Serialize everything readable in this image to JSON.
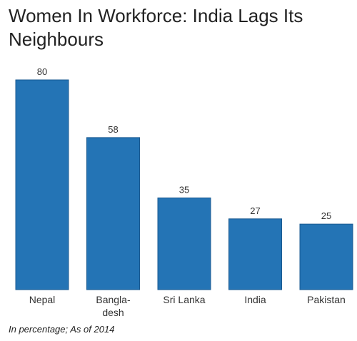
{
  "chart_data": {
    "type": "bar",
    "title": "Women In Workforce: India Lags Its Neighbours",
    "categories": [
      [
        "Nepal"
      ],
      [
        "Bangla-",
        "desh"
      ],
      [
        "Sri Lanka"
      ],
      [
        "India"
      ],
      [
        "Pakistan"
      ]
    ],
    "values": [
      80,
      58,
      35,
      27,
      25
    ],
    "ylim": [
      0,
      80
    ],
    "grid": false,
    "note": "In percentage; As of 2014",
    "bar_color": "#2474b5",
    "bar_edge_color": "#1a5a91"
  }
}
